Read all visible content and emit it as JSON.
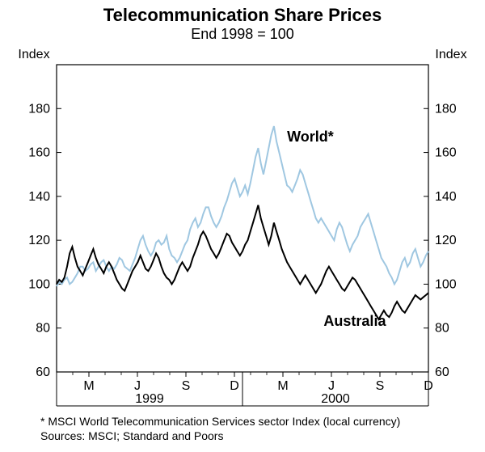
{
  "chart": {
    "type": "line",
    "title": "Telecommunication Share Prices",
    "subtitle": "End 1998 = 100",
    "title_fontsize": 22,
    "subtitle_fontsize": 18,
    "axis_title_left": "Index",
    "axis_title_right": "Index",
    "ylim": [
      60,
      200
    ],
    "ytick_step": 20,
    "yticks": [
      60,
      80,
      100,
      120,
      140,
      160,
      180
    ],
    "background_color": "#ffffff",
    "grid_color": "#000000",
    "plot_border_color": "#000000",
    "colors": {
      "world": "#9fc7e1",
      "australia": "#000000"
    },
    "line_width_world": 2.0,
    "line_width_aus": 2.0,
    "x_months": [
      "M",
      "J",
      "S",
      "D",
      "M",
      "J",
      "S",
      "D"
    ],
    "x_years": [
      "1999",
      "2000"
    ],
    "series_labels": {
      "world": "World*",
      "australia": "Australia"
    },
    "footnote": "* MSCI World Telecommunication Services sector Index (local currency)",
    "sources": "Sources: MSCI; Standard and Poors",
    "series": {
      "world": [
        99,
        101,
        100,
        102,
        103,
        100,
        101,
        103,
        105,
        108,
        108,
        106,
        107,
        109,
        110,
        106,
        108,
        110,
        111,
        108,
        106,
        108,
        107,
        109,
        112,
        111,
        108,
        107,
        106,
        109,
        112,
        116,
        120,
        122,
        118,
        115,
        113,
        115,
        119,
        120,
        118,
        119,
        122,
        116,
        113,
        112,
        110,
        112,
        115,
        118,
        120,
        125,
        128,
        130,
        126,
        128,
        132,
        135,
        135,
        131,
        128,
        126,
        128,
        131,
        135,
        138,
        142,
        146,
        148,
        144,
        140,
        142,
        145,
        141,
        146,
        152,
        158,
        162,
        155,
        150,
        156,
        162,
        168,
        172,
        165,
        160,
        155,
        150,
        145,
        144,
        142,
        145,
        148,
        152,
        150,
        146,
        142,
        138,
        134,
        130,
        128,
        130,
        128,
        126,
        124,
        122,
        120,
        125,
        128,
        126,
        122,
        118,
        115,
        118,
        120,
        122,
        126,
        128,
        130,
        132,
        128,
        124,
        120,
        116,
        112,
        110,
        108,
        105,
        103,
        100,
        102,
        106,
        110,
        112,
        108,
        110,
        114,
        116,
        112,
        108,
        110,
        113,
        115
      ],
      "australia": [
        100,
        102,
        101,
        103,
        108,
        114,
        117,
        112,
        108,
        106,
        104,
        107,
        110,
        113,
        116,
        112,
        109,
        107,
        105,
        108,
        110,
        108,
        105,
        102,
        100,
        98,
        97,
        100,
        103,
        106,
        108,
        110,
        113,
        110,
        107,
        106,
        108,
        111,
        114,
        112,
        108,
        105,
        103,
        102,
        100,
        102,
        105,
        108,
        110,
        108,
        106,
        108,
        112,
        115,
        118,
        122,
        124,
        122,
        119,
        116,
        114,
        112,
        114,
        117,
        120,
        123,
        122,
        119,
        117,
        115,
        113,
        115,
        118,
        120,
        124,
        128,
        132,
        136,
        130,
        126,
        122,
        118,
        122,
        128,
        124,
        120,
        116,
        113,
        110,
        108,
        106,
        104,
        102,
        100,
        102,
        104,
        102,
        100,
        98,
        96,
        98,
        100,
        103,
        106,
        108,
        106,
        104,
        102,
        100,
        98,
        97,
        99,
        101,
        103,
        102,
        100,
        98,
        96,
        94,
        92,
        90,
        88,
        86,
        84,
        86,
        88,
        86,
        85,
        87,
        90,
        92,
        90,
        88,
        87,
        89,
        91,
        93,
        95,
        94,
        93,
        94,
        95,
        96
      ]
    }
  }
}
